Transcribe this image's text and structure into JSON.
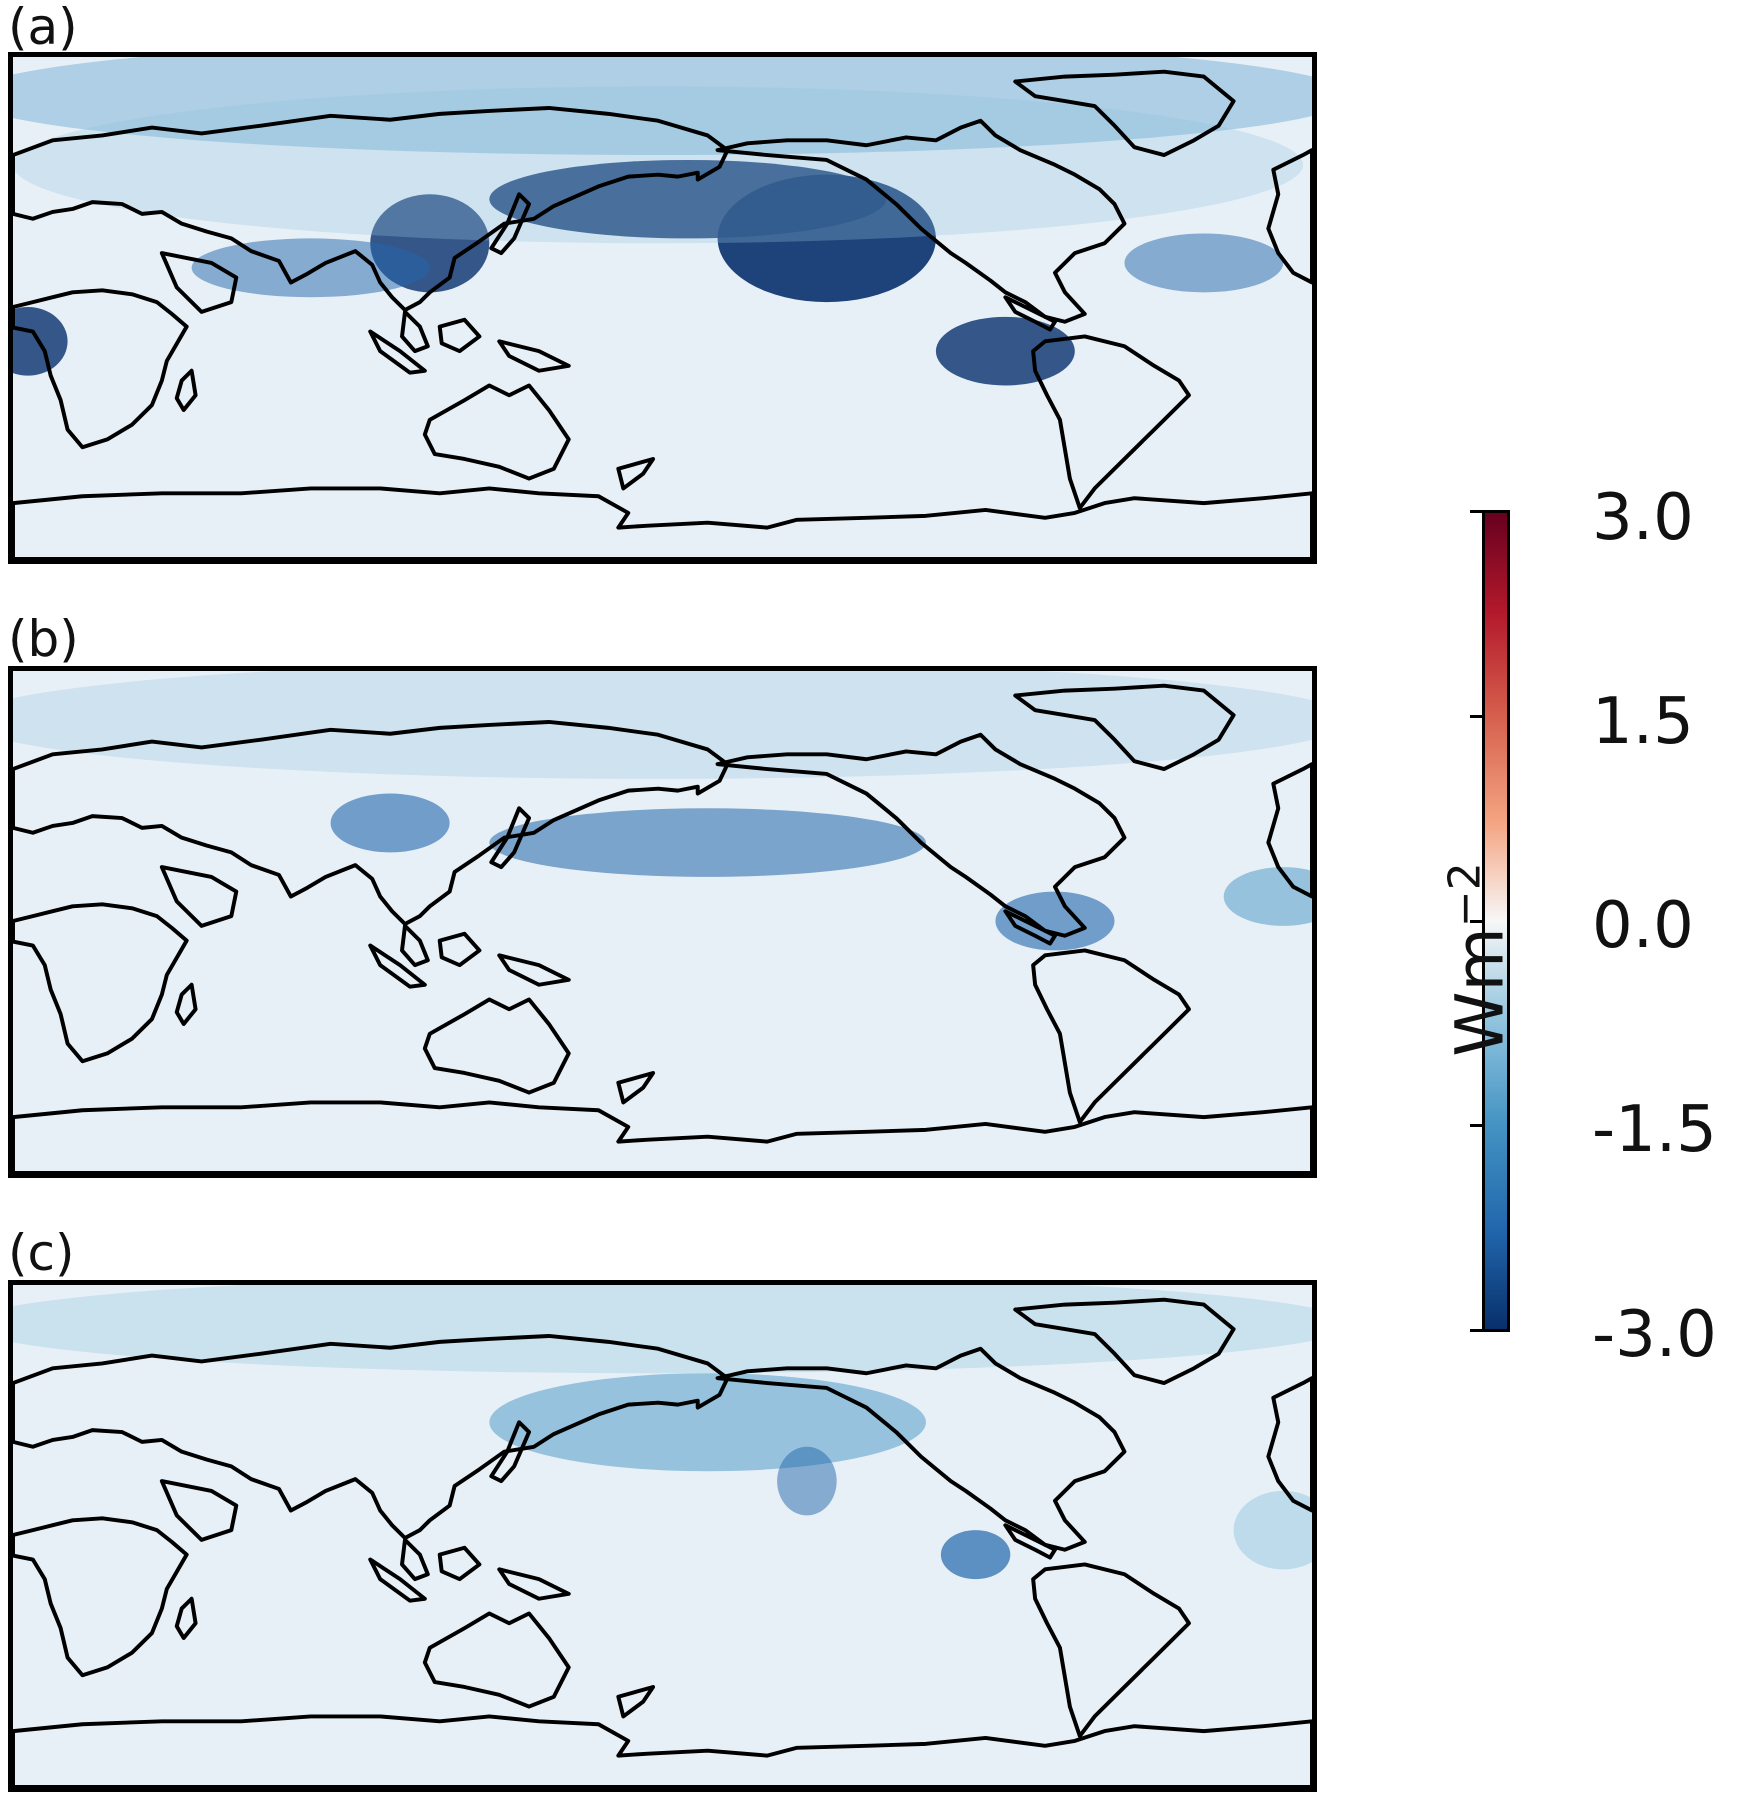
{
  "panels": [
    {
      "label": "(a)",
      "intensity": 1.0
    },
    {
      "label": "(b)",
      "intensity": 0.55
    },
    {
      "label": "(c)",
      "intensity": 0.45
    }
  ],
  "colorbar": {
    "title": "Wm",
    "title_sup": "−2",
    "ticks": [
      "3.0",
      "1.5",
      "0.0",
      "-1.5",
      "-3.0"
    ],
    "vmin": -3.0,
    "vmax": 3.0,
    "colors": {
      "neg": "#08306b",
      "mid": "#f7f7f7",
      "pos": "#67001f"
    }
  }
}
